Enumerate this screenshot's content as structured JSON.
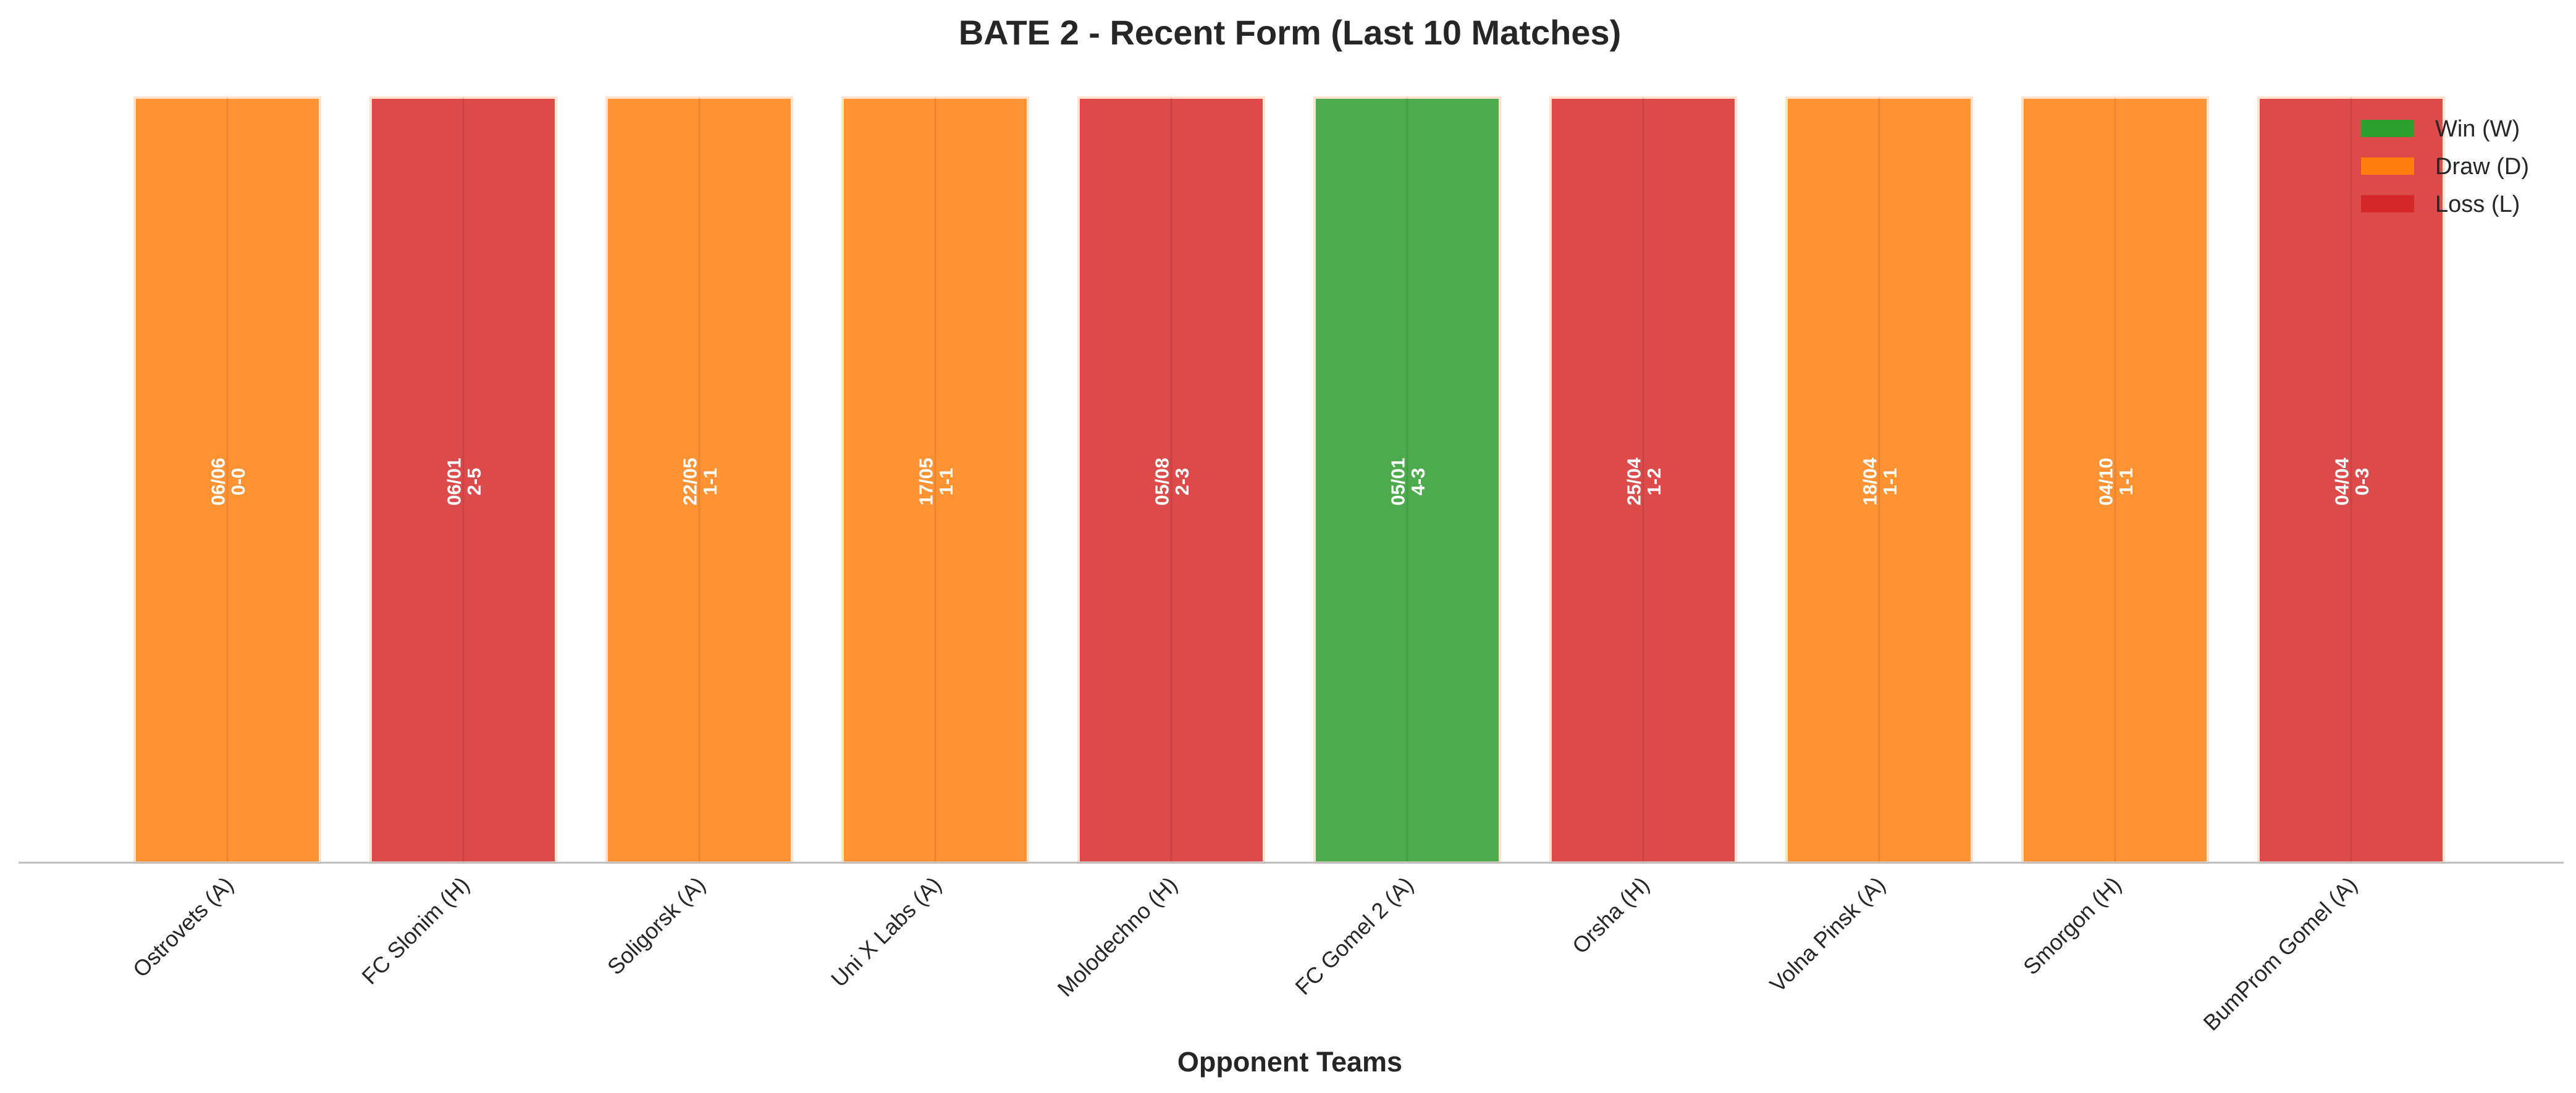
{
  "chart_data": {
    "type": "bar",
    "title": "BATE 2 - Recent Form (Last 10 Matches)",
    "xlabel": "Opponent Teams",
    "ylabel": "",
    "grid": false,
    "legend_position": "top-right",
    "categories": [
      "Ostrovets (A)",
      "FC Slonim (H)",
      "Soligorsk (A)",
      "Uni X Labs (A)",
      "Molodechno (H)",
      "FC Gomel 2 (A)",
      "Orsha (H)",
      "Volna Pinsk (A)",
      "Smorgon (H)",
      "BumProm Gomel (A)"
    ],
    "values": [
      1,
      1,
      1,
      1,
      1,
      1,
      1,
      1,
      1,
      1
    ],
    "ylim": [
      0,
      1
    ],
    "results": [
      "D",
      "L",
      "D",
      "D",
      "L",
      "W",
      "L",
      "D",
      "D",
      "L"
    ],
    "dates": [
      "06/06",
      "06/01",
      "22/05",
      "17/05",
      "05/08",
      "05/01",
      "25/04",
      "18/04",
      "04/10",
      "04/04"
    ],
    "scores": [
      "0-0",
      "2-5",
      "1-1",
      "1-1",
      "2-3",
      "4-3",
      "1-2",
      "1-1",
      "1-1",
      "0-3"
    ],
    "legend": [
      {
        "key": "W",
        "label": "Win (W)",
        "color": "#2ca02c"
      },
      {
        "key": "D",
        "label": "Draw (D)",
        "color": "#ff7f0e"
      },
      {
        "key": "L",
        "label": "Loss (L)",
        "color": "#d62728"
      }
    ],
    "bar_colors": {
      "W": "#4cab4c",
      "D": "#ff9233",
      "L": "#dc4a4a"
    }
  }
}
